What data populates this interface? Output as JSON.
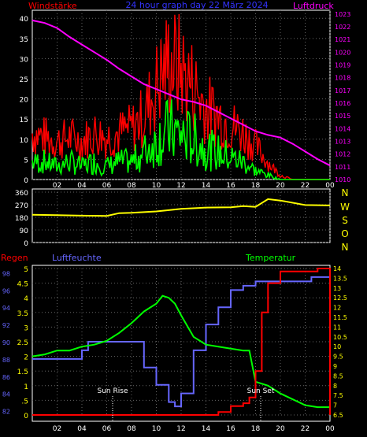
{
  "header": {
    "left_label": "Windstärke",
    "center_title": "24 hour graph day  22 März 2024",
    "right_label": "Luftdruck"
  },
  "colors": {
    "bg": "#000000",
    "gust": "#ff0000",
    "wind": "#00ff00",
    "pressure": "#ff00ff",
    "direction": "#ffff00",
    "humidity": "#6666ff",
    "temperature": "#00ff00",
    "rain": "#ff0000",
    "frame": "#ffffff",
    "grid": "#666666",
    "axis_text": "#ffffff"
  },
  "x_ticks": [
    "02",
    "04",
    "06",
    "08",
    "10",
    "12",
    "14",
    "16",
    "18",
    "20",
    "22",
    "00"
  ],
  "wind_panel": {
    "y_ticks_left": [
      "0",
      "5",
      "10",
      "15",
      "20",
      "25",
      "30",
      "35",
      "40"
    ],
    "y_ticks_right": [
      "1010",
      "1011",
      "1012",
      "1013",
      "1014",
      "1015",
      "1016",
      "1017",
      "1018",
      "1019",
      "1020",
      "1021",
      "1022",
      "1023"
    ]
  },
  "direction_panel": {
    "y_ticks": [
      "0",
      "90",
      "180",
      "270",
      "360"
    ],
    "compass": [
      "N",
      "W",
      "S",
      "O",
      "N"
    ]
  },
  "climate_panel": {
    "labels": {
      "rain": "Regen",
      "humidity": "Luftfeuchte",
      "temperature": "Temperatur"
    },
    "y_ticks_humidity": [
      "82",
      "84",
      "86",
      "88",
      "90",
      "92",
      "94",
      "96",
      "98"
    ],
    "y_ticks_rain": [
      "0",
      ".5",
      "1",
      "1.5",
      "2",
      "2.5",
      "3",
      "3.5",
      "4",
      "4.5",
      "5"
    ],
    "y_ticks_temp": [
      "6.5",
      "7",
      "7.5",
      "8",
      "8.5",
      "9",
      "9.5",
      "10",
      "10.5",
      "11",
      "11.5",
      "12",
      "12.5",
      "13",
      "13.5",
      "14"
    ],
    "sun_rise": "Sun Rise",
    "sun_set": "Sun Set"
  },
  "chart_data": [
    {
      "type": "line",
      "title": "24 hour graph day  22 März 2024",
      "series": [
        {
          "name": "Windstärke",
          "x": [
            0,
            1,
            2,
            3,
            4,
            5,
            6,
            7,
            8,
            9,
            10,
            11,
            12,
            13,
            14,
            15,
            16,
            17,
            18,
            19,
            20,
            21,
            22,
            23,
            24
          ],
          "values": [
            4,
            4,
            3,
            4,
            3,
            4,
            3,
            4,
            4,
            6,
            9,
            11,
            10,
            9,
            7,
            6,
            5,
            4,
            2,
            1,
            0,
            0,
            0,
            0,
            0
          ]
        },
        {
          "name": "Böen",
          "x": [
            0,
            1,
            2,
            3,
            4,
            5,
            6,
            7,
            8,
            9,
            10,
            11,
            12,
            13,
            14,
            15,
            16,
            17,
            18,
            19,
            20,
            21,
            22,
            23,
            24
          ],
          "values": [
            11,
            10,
            9,
            10,
            9,
            11,
            10,
            11,
            12,
            15,
            22,
            28,
            26,
            22,
            17,
            15,
            13,
            11,
            8,
            4,
            1,
            0,
            0,
            0,
            0
          ]
        },
        {
          "name": "Luftdruck",
          "x": [
            0,
            1,
            2,
            3,
            4,
            5,
            6,
            7,
            8,
            9,
            10,
            11,
            12,
            13,
            14,
            15,
            16,
            17,
            18,
            19,
            20,
            21,
            22,
            23,
            24
          ],
          "values": [
            1022.5,
            1022.3,
            1021.9,
            1021.2,
            1020.6,
            1020.0,
            1019.4,
            1018.7,
            1018.1,
            1017.5,
            1017.1,
            1016.7,
            1016.3,
            1016.1,
            1015.8,
            1015.3,
            1014.8,
            1014.3,
            1013.8,
            1013.5,
            1013.3,
            1012.8,
            1012.2,
            1011.6,
            1011.1
          ]
        }
      ],
      "ylim_left": [
        0,
        42
      ],
      "ylim_right": [
        1010,
        1023.3
      ]
    },
    {
      "type": "line",
      "series": [
        {
          "name": "Windrichtung",
          "x": [
            0,
            2,
            4,
            6,
            7,
            8,
            10,
            12,
            14,
            16,
            17,
            18,
            19,
            20,
            22,
            24
          ],
          "values": [
            198,
            195,
            192,
            190,
            210,
            212,
            222,
            240,
            250,
            252,
            260,
            255,
            310,
            300,
            268,
            265
          ]
        }
      ],
      "ylim": [
        0,
        360
      ]
    },
    {
      "type": "line",
      "series": [
        {
          "name": "Luftfeuchte",
          "x": [
            0,
            2,
            4,
            4.5,
            6,
            7,
            8,
            9,
            10,
            11,
            11.5,
            12,
            13,
            14,
            15,
            16,
            17,
            18,
            19,
            20,
            21,
            22,
            22.5,
            24
          ],
          "values": [
            88,
            88,
            89,
            90,
            90,
            90,
            90,
            87,
            85,
            83,
            82.5,
            84,
            89,
            92,
            94,
            96,
            96.5,
            97,
            97,
            97,
            97,
            97,
            97.5,
            97.5
          ]
        },
        {
          "name": "Temperatur",
          "x": [
            0,
            1,
            2,
            3,
            4,
            5,
            6,
            7,
            8,
            8.5,
            9,
            9.5,
            10,
            10.5,
            11,
            11.5,
            12,
            13,
            14,
            15,
            16,
            17,
            17.5,
            18,
            19,
            20,
            21,
            22,
            23,
            24
          ],
          "values": [
            9.5,
            9.6,
            9.8,
            9.8,
            10,
            10.1,
            10.3,
            10.7,
            11.2,
            11.5,
            11.8,
            12,
            12.2,
            12.6,
            12.5,
            12.2,
            11.6,
            10.5,
            10.1,
            10,
            9.9,
            9.8,
            9.8,
            8.2,
            8,
            7.6,
            7.3,
            7.0,
            6.9,
            6.9
          ]
        },
        {
          "name": "Regen",
          "x": [
            0,
            12,
            14,
            15,
            16,
            17,
            17.5,
            18,
            18.5,
            19,
            20,
            21,
            22,
            23,
            23.5,
            24
          ],
          "values": [
            0,
            0,
            0,
            0.1,
            0.3,
            0.4,
            0.6,
            1.5,
            3.5,
            4.5,
            4.9,
            4.9,
            4.9,
            5.0,
            5.0,
            0
          ]
        }
      ],
      "ylim_humidity": [
        81.5,
        98.5
      ],
      "ylim_rain": [
        0,
        5
      ],
      "ylim_temp": [
        6.5,
        14
      ]
    }
  ]
}
